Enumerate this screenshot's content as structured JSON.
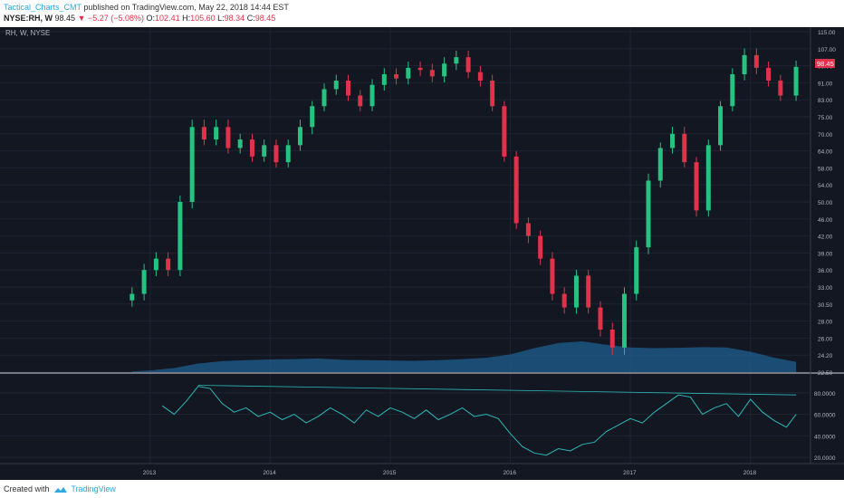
{
  "header": {
    "author": "Tactical_Charts_CMT",
    "published_text": "published on TradingView.com, May 22, 2018 14:44 EST",
    "symbol": "NYSE:RH, W",
    "last": "98.45",
    "change": "▼ −5.27 (−5.08%)",
    "open_label": "O:",
    "open": "102.41",
    "high_label": "H:",
    "high": "105.60",
    "low_label": "L:",
    "low": "98.34",
    "close_label": "C:",
    "close": "98.45"
  },
  "legend_text": "RH, W, NYSE",
  "price_tag": "98.45",
  "footer": {
    "created_with": "Created with",
    "brand": "TradingView"
  },
  "colors": {
    "background": "#131722",
    "up": "#26c281",
    "down": "#e0324b",
    "volume": "#1f5f8f",
    "indicator": "#2ab7b7"
  },
  "chart_data": [
    {
      "type": "candlestick",
      "title": "RH, W, NYSE",
      "y_ticks": [
        "115.00",
        "107.00",
        "99.00",
        "91.00",
        "83.00",
        "75.00",
        "70.00",
        "64.00",
        "58.00",
        "54.00",
        "50.00",
        "46.00",
        "42.00",
        "39.00",
        "36.00",
        "33.00",
        "30.50",
        "28.00",
        "26.00",
        "24.20",
        "22.50"
      ],
      "x_ticks": [
        "2013",
        "2014",
        "2015",
        "2016",
        "2017",
        "2018"
      ],
      "x_range": [
        2011.75,
        2018.5
      ],
      "series": [
        {
          "x": [
            2012.85,
            2012.95,
            2013.05,
            2013.15,
            2013.25,
            2013.35,
            2013.45,
            2013.55,
            2013.65,
            2013.75,
            2013.85,
            2013.95,
            2014.05,
            2014.15,
            2014.25,
            2014.35,
            2014.45,
            2014.55,
            2014.65,
            2014.75,
            2014.85,
            2014.95,
            2015.05,
            2015.15,
            2015.25,
            2015.35,
            2015.45,
            2015.55,
            2015.65,
            2015.75,
            2015.85,
            2015.95,
            2016.05,
            2016.15,
            2016.25,
            2016.35,
            2016.45,
            2016.55,
            2016.65,
            2016.75,
            2016.85,
            2016.95,
            2017.05,
            2017.15,
            2017.25,
            2017.35,
            2017.45,
            2017.55,
            2017.65,
            2017.75,
            2017.85,
            2017.95,
            2018.05,
            2018.15,
            2018.25,
            2018.38
          ],
          "close": [
            32,
            36,
            38,
            36,
            50,
            72,
            68,
            72,
            65,
            68,
            62,
            66,
            60,
            66,
            72,
            80,
            88,
            92,
            85,
            80,
            90,
            95,
            93,
            98,
            97,
            94,
            100,
            103,
            96,
            92,
            80,
            62,
            45,
            42,
            38,
            32,
            30,
            35,
            30,
            27,
            25,
            32,
            40,
            55,
            65,
            70,
            60,
            48,
            66,
            80,
            95,
            104,
            98,
            92,
            85,
            98.45
          ]
        }
      ]
    },
    {
      "type": "area",
      "title": "",
      "series": [
        {
          "x": [
            2012.85,
            2013.0,
            2013.2,
            2013.4,
            2013.6,
            2013.8,
            2014.0,
            2014.2,
            2014.4,
            2014.6,
            2014.8,
            2015.0,
            2015.2,
            2015.4,
            2015.6,
            2015.8,
            2016.0,
            2016.2,
            2016.4,
            2016.6,
            2016.8,
            2017.0,
            2017.2,
            2017.4,
            2017.6,
            2017.8,
            2018.0,
            2018.2,
            2018.38
          ],
          "values": [
            0.2,
            0.5,
            1.2,
            2.5,
            3.2,
            3.5,
            3.7,
            3.8,
            4.0,
            3.6,
            3.5,
            3.4,
            3.3,
            3.5,
            3.8,
            4.2,
            5.2,
            7.0,
            8.5,
            9.0,
            8.0,
            7.2,
            7.0,
            7.1,
            7.3,
            7.2,
            6.0,
            4.2,
            3.0
          ]
        }
      ]
    },
    {
      "type": "line",
      "title": "",
      "y_ticks": [
        "80.0000",
        "60.0000",
        "40.0000",
        "20.0000"
      ],
      "ylim": [
        15,
        95
      ],
      "series": [
        {
          "x": [
            2013.1,
            2013.2,
            2013.3,
            2013.4,
            2013.5,
            2013.6,
            2013.7,
            2013.8,
            2013.9,
            2014.0,
            2014.1,
            2014.2,
            2014.3,
            2014.4,
            2014.5,
            2014.6,
            2014.7,
            2014.8,
            2014.9,
            2015.0,
            2015.1,
            2015.2,
            2015.3,
            2015.4,
            2015.5,
            2015.6,
            2015.7,
            2015.8,
            2015.9,
            2016.0,
            2016.1,
            2016.2,
            2016.3,
            2016.4,
            2016.5,
            2016.6,
            2016.7,
            2016.8,
            2016.9,
            2017.0,
            2017.1,
            2017.2,
            2017.3,
            2017.4,
            2017.5,
            2017.6,
            2017.7,
            2017.8,
            2017.9,
            2018.0,
            2018.1,
            2018.2,
            2018.3,
            2018.38
          ],
          "values": [
            68,
            60,
            72,
            86,
            84,
            70,
            62,
            66,
            58,
            62,
            55,
            60,
            52,
            58,
            66,
            60,
            52,
            64,
            58,
            66,
            62,
            56,
            64,
            55,
            60,
            66,
            58,
            60,
            56,
            42,
            30,
            24,
            22,
            28,
            26,
            32,
            34,
            44,
            50,
            56,
            52,
            62,
            70,
            78,
            76,
            60,
            66,
            70,
            58,
            74,
            62,
            54,
            48,
            60
          ]
        }
      ]
    }
  ]
}
